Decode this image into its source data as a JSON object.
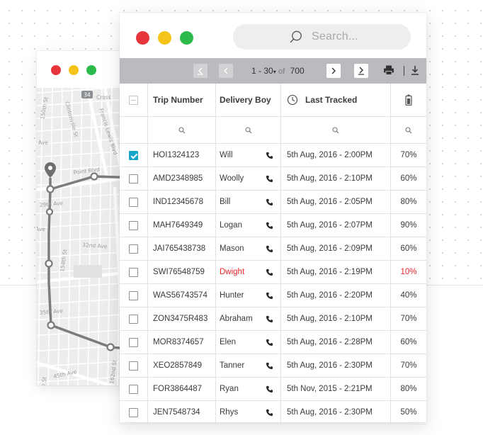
{
  "colors": {
    "window_close": "#e6353c",
    "window_minimize": "#f6c31b",
    "window_maximize": "#2cbb4b",
    "toolbar_bg": "#b9bbbe",
    "checkbox_checked": "#18a6c8",
    "alert_text": "#e8262b",
    "route_line": "#7b7c7e"
  },
  "map_window": {
    "street_labels": {
      "s1": "Cross",
      "s2": "150th St",
      "s3": "Clintonville St",
      "s4": "Francis Lewis Blvd",
      "s5": "Point Blvd",
      "s6": "Ave",
      "s7": "29th Ave",
      "s8": "Ave",
      "s9": "32nd Ave",
      "s10": "154th St",
      "s11": "35th Ave",
      "s12": "162nd St",
      "s13": "149th St",
      "s14": "45th Ave",
      "badge": "34"
    }
  },
  "table_window": {
    "search": {
      "placeholder": "Search..."
    },
    "pagination": {
      "range_start": "1",
      "range_separator": "-",
      "range_end": "30",
      "of_label": "of",
      "total": "700"
    },
    "toolbar_icons": [
      "first-page-icon",
      "previous-page-icon",
      "next-page-icon",
      "last-page-icon",
      "print-icon",
      "download-icon"
    ],
    "columns": {
      "trip_number": "Trip Number",
      "delivery_boy": "Delivery Boy",
      "last_tracked": "Last Tracked",
      "battery": "battery-icon"
    },
    "rows": [
      {
        "checked": true,
        "trip": "HOI1324123",
        "boy": "Will",
        "tracked": "5th Aug, 2016 - 2:00PM",
        "battery": "70%",
        "alert": false
      },
      {
        "checked": false,
        "trip": "AMD2348985",
        "boy": "Woolly",
        "tracked": "5th Aug, 2016 - 2:10PM",
        "battery": "60%",
        "alert": false
      },
      {
        "checked": false,
        "trip": "IND12345678",
        "boy": "Bill",
        "tracked": "5th Aug, 2016 - 2:05PM",
        "battery": "80%",
        "alert": false
      },
      {
        "checked": false,
        "trip": "MAH7649349",
        "boy": "Logan",
        "tracked": "5th Aug, 2016 - 2:07PM",
        "battery": "90%",
        "alert": false
      },
      {
        "checked": false,
        "trip": "JAI765438738",
        "boy": "Mason",
        "tracked": "5th Aug, 2016 - 2:09PM",
        "battery": "60%",
        "alert": false
      },
      {
        "checked": false,
        "trip": "SWI76548759",
        "boy": "Dwight",
        "tracked": "5th Aug, 2016 - 2:19PM",
        "battery": "10%",
        "alert": true
      },
      {
        "checked": false,
        "trip": "WAS56743574",
        "boy": "Hunter",
        "tracked": "5th Aug, 2016 - 2:20PM",
        "battery": "40%",
        "alert": false
      },
      {
        "checked": false,
        "trip": "ZON3475R483",
        "boy": "Abraham",
        "tracked": "5th Aug, 2016 - 2:10PM",
        "battery": "70%",
        "alert": false
      },
      {
        "checked": false,
        "trip": "MOR8374657",
        "boy": "Elen",
        "tracked": "5th Aug, 2016 - 2:28PM",
        "battery": "60%",
        "alert": false
      },
      {
        "checked": false,
        "trip": "XEO2857849",
        "boy": "Tanner",
        "tracked": "5th Aug, 2016 - 2:30PM",
        "battery": "70%",
        "alert": false
      },
      {
        "checked": false,
        "trip": "FOR3864487",
        "boy": "Ryan",
        "tracked": "5th Nov, 2015 - 2:21PM",
        "battery": "80%",
        "alert": false
      },
      {
        "checked": false,
        "trip": "JEN7548734",
        "boy": "Rhys",
        "tracked": "5th Aug, 2016 - 2:30PM",
        "battery": "50%",
        "alert": false
      }
    ]
  }
}
